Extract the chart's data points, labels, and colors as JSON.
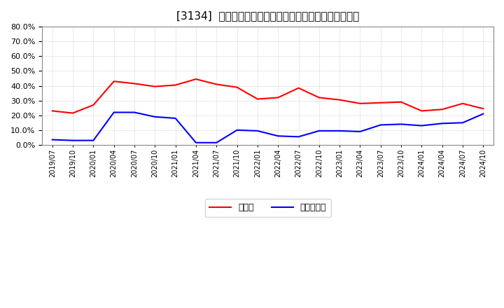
{
  "title": "[3134]  現預金、有利子負債の総資産に対する比率の推移",
  "x_labels": [
    "2019/07",
    "2019/10",
    "2020/01",
    "2020/04",
    "2020/07",
    "2020/10",
    "2021/01",
    "2021/04",
    "2021/07",
    "2021/10",
    "2022/01",
    "2022/04",
    "2022/07",
    "2022/10",
    "2023/01",
    "2023/04",
    "2023/07",
    "2023/10",
    "2024/01",
    "2024/04",
    "2024/07",
    "2024/10"
  ],
  "cash_ratio": [
    23.0,
    21.5,
    27.0,
    43.0,
    41.5,
    39.5,
    40.5,
    44.5,
    41.0,
    39.0,
    31.0,
    32.0,
    38.5,
    32.0,
    30.5,
    28.0,
    28.5,
    29.0,
    23.0,
    24.0,
    28.0,
    24.5
  ],
  "debt_ratio": [
    3.5,
    3.0,
    3.0,
    22.0,
    22.0,
    19.0,
    18.0,
    1.5,
    1.5,
    10.0,
    9.5,
    6.0,
    5.5,
    9.5,
    9.5,
    9.0,
    13.5,
    14.0,
    13.0,
    14.5,
    15.0,
    21.0
  ],
  "cash_color": "#ff0000",
  "debt_color": "#0000ff",
  "background_color": "#ffffff",
  "grid_color": "#aaaaaa",
  "ylim": [
    0,
    80
  ],
  "yticks": [
    0,
    10,
    20,
    30,
    40,
    50,
    60,
    70,
    80
  ],
  "legend_cash": "現預金",
  "legend_debt": "有利子負債"
}
